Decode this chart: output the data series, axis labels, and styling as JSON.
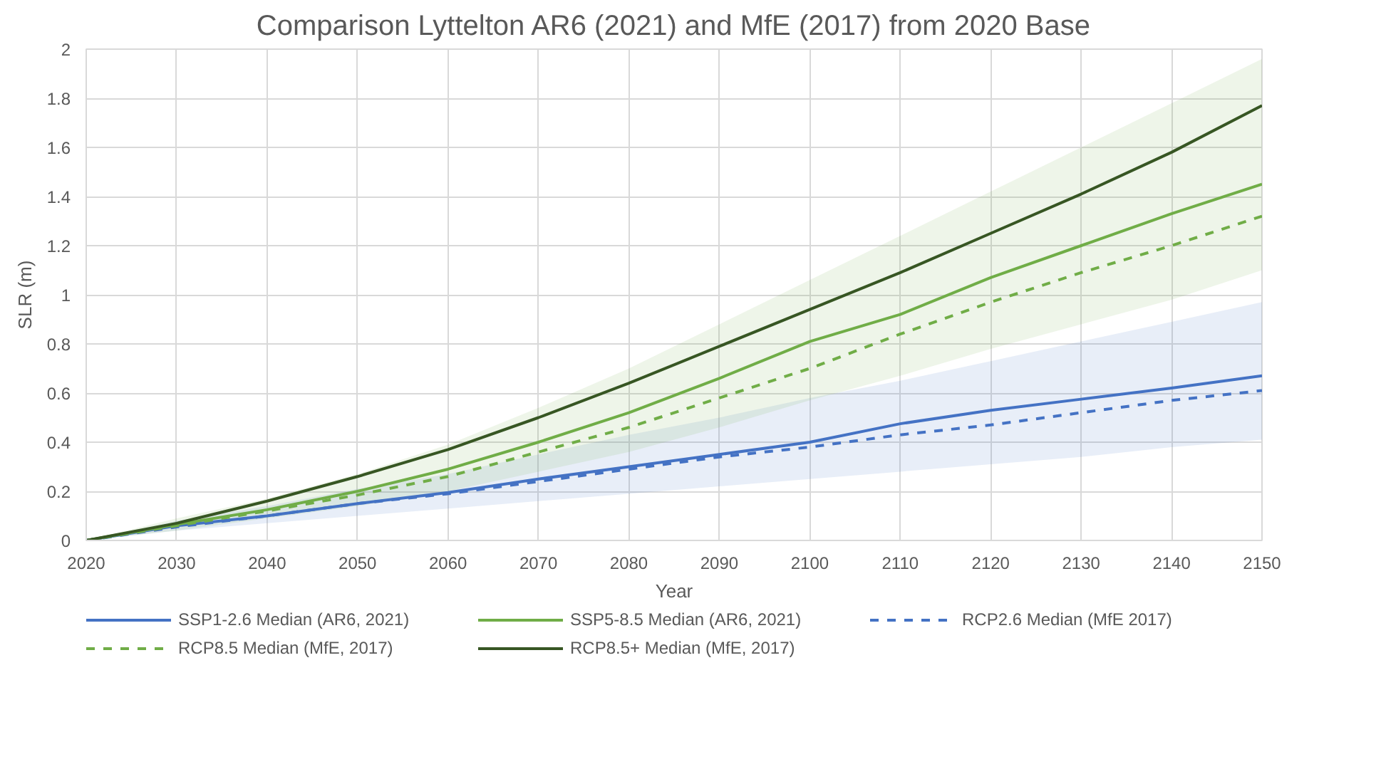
{
  "chart_data": {
    "type": "line",
    "title": "Comparison Lyttelton AR6 (2021) and MfE (2017) from 2020 Base",
    "xlabel": "Year",
    "ylabel": "SLR (m)",
    "x": [
      2020,
      2030,
      2040,
      2050,
      2060,
      2070,
      2080,
      2090,
      2100,
      2110,
      2120,
      2130,
      2140,
      2150
    ],
    "series": [
      {
        "name": "SSP1-2.6 Median (AR6, 2021)",
        "color": "#4472c4",
        "line_style": "solid",
        "values": [
          0,
          0.06,
          0.1,
          0.15,
          0.195,
          0.25,
          0.3,
          0.35,
          0.4,
          0.475,
          0.53,
          0.575,
          0.62,
          0.67
        ],
        "lower": [
          0,
          0.04,
          0.07,
          0.1,
          0.13,
          0.16,
          0.19,
          0.22,
          0.25,
          0.28,
          0.31,
          0.34,
          0.38,
          0.41
        ],
        "upper": [
          0,
          0.08,
          0.14,
          0.21,
          0.27,
          0.35,
          0.43,
          0.5,
          0.58,
          0.65,
          0.73,
          0.81,
          0.89,
          0.97
        ]
      },
      {
        "name": "SSP5-8.5 Median (AR6, 2021)",
        "color": "#70ad47",
        "line_style": "solid",
        "values": [
          0,
          0.065,
          0.125,
          0.2,
          0.29,
          0.4,
          0.52,
          0.66,
          0.81,
          0.92,
          1.07,
          1.2,
          1.33,
          1.45
        ],
        "lower": [
          0,
          0.04,
          0.09,
          0.14,
          0.2,
          0.28,
          0.36,
          0.46,
          0.57,
          0.67,
          0.78,
          0.88,
          0.98,
          1.1
        ],
        "upper": [
          0,
          0.09,
          0.17,
          0.27,
          0.39,
          0.54,
          0.7,
          0.88,
          1.06,
          1.24,
          1.42,
          1.6,
          1.78,
          1.96
        ]
      },
      {
        "name": "RCP2.6 Median (MfE 2017)",
        "color": "#4472c4",
        "line_style": "dashed",
        "values": [
          0,
          0.055,
          0.1,
          0.15,
          0.19,
          0.24,
          0.29,
          0.34,
          0.38,
          0.43,
          0.47,
          0.52,
          0.57,
          0.61
        ]
      },
      {
        "name": "RCP8.5 Median (MfE, 2017)",
        "color": "#70ad47",
        "line_style": "dashed",
        "values": [
          0,
          0.06,
          0.12,
          0.185,
          0.26,
          0.36,
          0.46,
          0.58,
          0.7,
          0.84,
          0.97,
          1.09,
          1.2,
          1.32
        ]
      },
      {
        "name": "RCP8.5+ Median (MfE, 2017)",
        "color": "#375623",
        "line_style": "solid",
        "values": [
          0,
          0.07,
          0.16,
          0.26,
          0.37,
          0.5,
          0.64,
          0.79,
          0.94,
          1.09,
          1.25,
          1.41,
          1.58,
          1.77
        ]
      }
    ],
    "xlim": [
      2020,
      2150
    ],
    "xticks": [
      2020,
      2030,
      2040,
      2050,
      2060,
      2070,
      2080,
      2090,
      2100,
      2110,
      2120,
      2130,
      2140,
      2150
    ],
    "ylim": [
      0,
      2
    ],
    "yticks": [
      0,
      0.2,
      0.4,
      0.6,
      0.8,
      1,
      1.2,
      1.4,
      1.6,
      1.8,
      2
    ],
    "grid": true,
    "legend": "bottom",
    "marker": "none"
  }
}
